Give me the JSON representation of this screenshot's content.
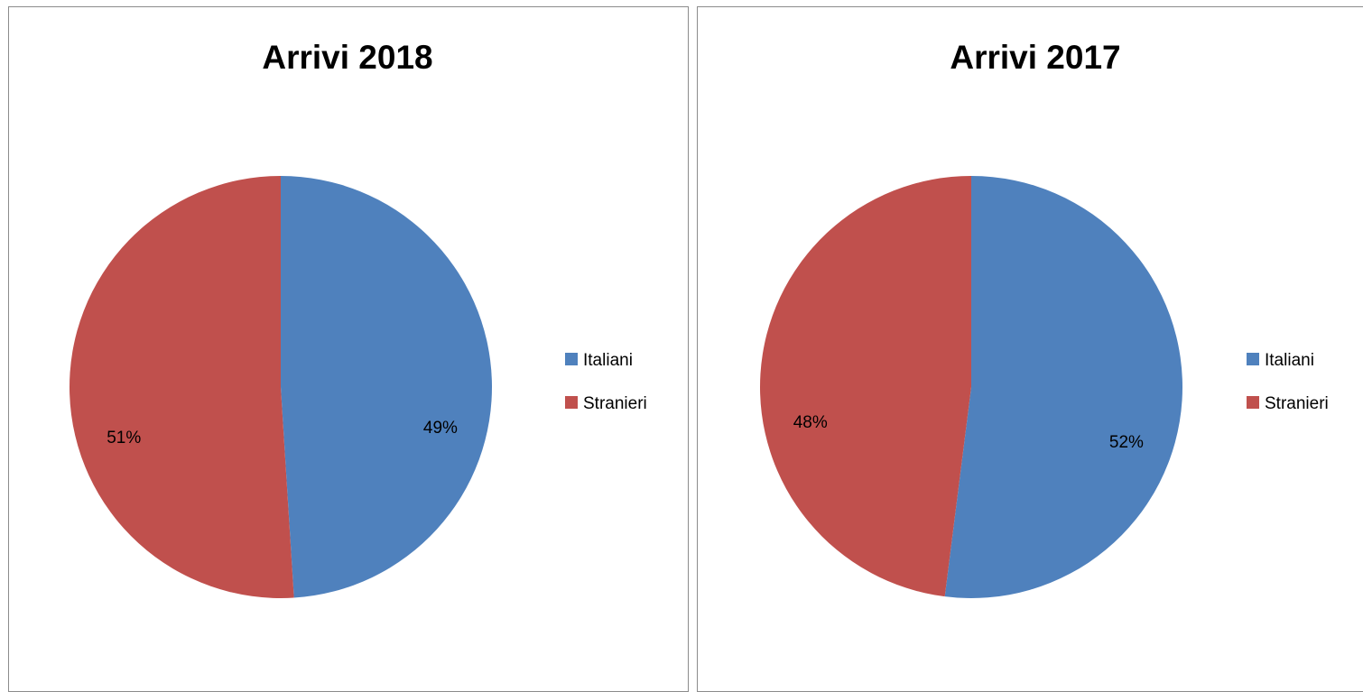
{
  "chart_data": [
    {
      "type": "pie",
      "title": "Arrivi 2018",
      "categories": [
        "Italiani",
        "Stranieri"
      ],
      "values": [
        49,
        51
      ],
      "value_labels": [
        "49%",
        "51%"
      ],
      "colors": [
        "#4f81bd",
        "#c0504d"
      ],
      "legend": {
        "position": "right",
        "items": [
          {
            "label": "Italiani",
            "color": "#4f81bd"
          },
          {
            "label": "Stranieri",
            "color": "#c0504d"
          }
        ]
      }
    },
    {
      "type": "pie",
      "title": "Arrivi 2017",
      "categories": [
        "Italiani",
        "Stranieri"
      ],
      "values": [
        52,
        48
      ],
      "value_labels": [
        "52%",
        "48%"
      ],
      "colors": [
        "#4f81bd",
        "#c0504d"
      ],
      "legend": {
        "position": "right",
        "items": [
          {
            "label": "Italiani",
            "color": "#4f81bd"
          },
          {
            "label": "Stranieri",
            "color": "#c0504d"
          }
        ]
      }
    }
  ]
}
